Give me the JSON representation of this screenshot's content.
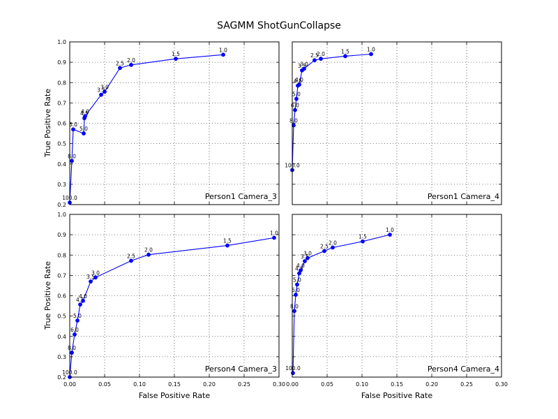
{
  "title": "SAGMM ShotGunCollapse",
  "xlabel": "False Positive Rate",
  "ylabel": "True Positive Rate",
  "colors": {
    "series": "#0000ff",
    "axes": "#000000",
    "grid": "#000000"
  },
  "chart_data": [
    {
      "type": "line",
      "panel_label": "Person1 Camera_3",
      "xlim": [
        0.0,
        0.3
      ],
      "ylim": [
        0.2,
        1.0
      ],
      "xticks": [],
      "yticks": [
        "0.2",
        "0.3",
        "0.4",
        "0.5",
        "0.6",
        "0.7",
        "0.8",
        "0.9",
        "1.0"
      ],
      "grid": true,
      "points": [
        {
          "x": 0.0,
          "y": 0.21,
          "label": "100.0"
        },
        {
          "x": 0.003,
          "y": 0.415,
          "label": "8.0"
        },
        {
          "x": 0.005,
          "y": 0.57,
          "label": "6.0"
        },
        {
          "x": 0.02,
          "y": 0.55,
          "label": "5.0"
        },
        {
          "x": 0.021,
          "y": 0.625,
          "label": "4.5"
        },
        {
          "x": 0.022,
          "y": 0.635,
          "label": "4.0"
        },
        {
          "x": 0.045,
          "y": 0.74,
          "label": "3.5"
        },
        {
          "x": 0.05,
          "y": 0.755,
          "label": "3.0"
        },
        {
          "x": 0.072,
          "y": 0.872,
          "label": "2.5"
        },
        {
          "x": 0.088,
          "y": 0.887,
          "label": "2.0"
        },
        {
          "x": 0.152,
          "y": 0.917,
          "label": "1.5"
        },
        {
          "x": 0.22,
          "y": 0.937,
          "label": "1.0"
        }
      ]
    },
    {
      "type": "line",
      "panel_label": "Person1 Camera_4",
      "xlim": [
        0.0,
        0.3
      ],
      "ylim": [
        0.2,
        1.0
      ],
      "xticks": [],
      "yticks": [],
      "grid": true,
      "points": [
        {
          "x": 0.0,
          "y": 0.37,
          "label": "100.0"
        },
        {
          "x": 0.002,
          "y": 0.59,
          "label": "8.0"
        },
        {
          "x": 0.004,
          "y": 0.665,
          "label": "6.0"
        },
        {
          "x": 0.006,
          "y": 0.72,
          "label": "5.0"
        },
        {
          "x": 0.008,
          "y": 0.785,
          "label": "4.5"
        },
        {
          "x": 0.01,
          "y": 0.79,
          "label": "4.0"
        },
        {
          "x": 0.014,
          "y": 0.86,
          "label": "3.5"
        },
        {
          "x": 0.017,
          "y": 0.868,
          "label": "3.0"
        },
        {
          "x": 0.032,
          "y": 0.91,
          "label": "2.5"
        },
        {
          "x": 0.041,
          "y": 0.917,
          "label": "2.0"
        },
        {
          "x": 0.076,
          "y": 0.93,
          "label": "1.5"
        },
        {
          "x": 0.113,
          "y": 0.94,
          "label": "1.0"
        }
      ]
    },
    {
      "type": "line",
      "panel_label": "Person4 Camera_3",
      "xlim": [
        0.0,
        0.3
      ],
      "ylim": [
        0.2,
        1.0
      ],
      "xticks": [
        "0.00",
        "0.05",
        "0.10",
        "0.15",
        "0.20",
        "0.25",
        "0.30"
      ],
      "yticks": [
        "0.2",
        "0.3",
        "0.4",
        "0.5",
        "0.6",
        "0.7",
        "0.8",
        "0.9",
        "1.0"
      ],
      "grid": true,
      "points": [
        {
          "x": 0.0,
          "y": 0.2,
          "label": "100.0"
        },
        {
          "x": 0.003,
          "y": 0.32,
          "label": "8.0"
        },
        {
          "x": 0.007,
          "y": 0.41,
          "label": "6.0"
        },
        {
          "x": 0.011,
          "y": 0.478,
          "label": "5.0"
        },
        {
          "x": 0.015,
          "y": 0.557,
          "label": "4.5"
        },
        {
          "x": 0.019,
          "y": 0.575,
          "label": "4.0"
        },
        {
          "x": 0.03,
          "y": 0.67,
          "label": "3.5"
        },
        {
          "x": 0.037,
          "y": 0.69,
          "label": "3.0"
        },
        {
          "x": 0.088,
          "y": 0.772,
          "label": "2.5"
        },
        {
          "x": 0.113,
          "y": 0.802,
          "label": "2.0"
        },
        {
          "x": 0.226,
          "y": 0.847,
          "label": "1.5"
        },
        {
          "x": 0.293,
          "y": 0.885,
          "label": "1.0"
        }
      ]
    },
    {
      "type": "line",
      "panel_label": "Person4 Camera_4",
      "xlim": [
        0.0,
        0.3
      ],
      "ylim": [
        0.2,
        1.0
      ],
      "xticks": [
        "0.00",
        "0.05",
        "0.10",
        "0.15",
        "0.20",
        "0.25",
        "0.30"
      ],
      "yticks": [],
      "grid": true,
      "points": [
        {
          "x": 0.001,
          "y": 0.22,
          "label": "100.0"
        },
        {
          "x": 0.003,
          "y": 0.525,
          "label": "8.0"
        },
        {
          "x": 0.005,
          "y": 0.605,
          "label": "6.0"
        },
        {
          "x": 0.007,
          "y": 0.655,
          "label": "5.0"
        },
        {
          "x": 0.01,
          "y": 0.71,
          "label": "4.5"
        },
        {
          "x": 0.012,
          "y": 0.725,
          "label": "4.0"
        },
        {
          "x": 0.018,
          "y": 0.77,
          "label": "3.5"
        },
        {
          "x": 0.022,
          "y": 0.785,
          "label": "3.0"
        },
        {
          "x": 0.046,
          "y": 0.82,
          "label": "2.5"
        },
        {
          "x": 0.058,
          "y": 0.837,
          "label": "2.0"
        },
        {
          "x": 0.101,
          "y": 0.867,
          "label": "1.5"
        },
        {
          "x": 0.14,
          "y": 0.9,
          "label": "1.0"
        }
      ]
    }
  ]
}
